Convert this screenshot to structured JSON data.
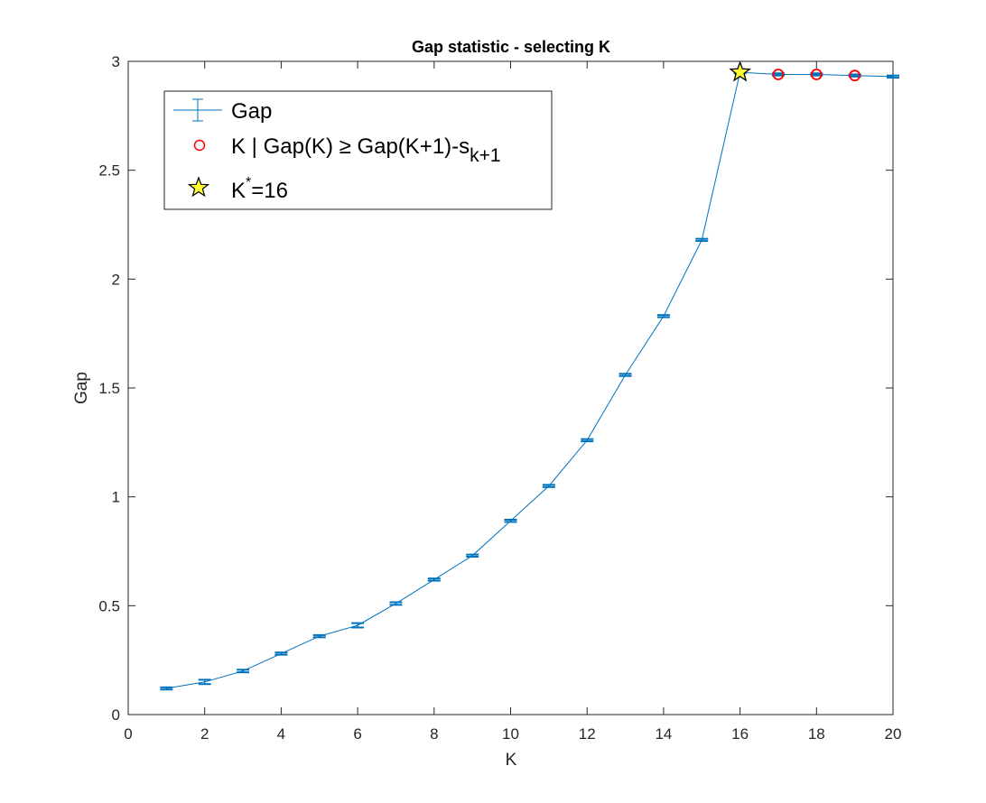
{
  "chart_data": {
    "type": "line",
    "title": "Gap statistic - selecting K",
    "xlabel": "K",
    "ylabel": "Gap",
    "xlim": [
      0,
      20
    ],
    "ylim": [
      0,
      3
    ],
    "xticks": [
      0,
      2,
      4,
      6,
      8,
      10,
      12,
      14,
      16,
      18,
      20
    ],
    "yticks": [
      0,
      0.5,
      1,
      1.5,
      2,
      2.5,
      3
    ],
    "grid": false,
    "legend_position": "top-left",
    "series": [
      {
        "name": "Gap",
        "style": "line-errorbar",
        "color": "#0072BD",
        "x": [
          1,
          2,
          3,
          4,
          5,
          6,
          7,
          8,
          9,
          10,
          11,
          12,
          13,
          14,
          15,
          16,
          17,
          18,
          19,
          20
        ],
        "y": [
          0.12,
          0.15,
          0.2,
          0.28,
          0.36,
          0.41,
          0.51,
          0.62,
          0.73,
          0.89,
          1.05,
          1.26,
          1.56,
          1.83,
          2.18,
          2.95,
          2.94,
          2.94,
          2.935,
          2.93
        ],
        "err": [
          0.005,
          0.01,
          0.006,
          0.005,
          0.005,
          0.01,
          0.006,
          0.005,
          0.005,
          0.005,
          0.005,
          0.005,
          0.005,
          0.005,
          0.005,
          0.005,
          0.005,
          0.005,
          0.005,
          0.005
        ]
      },
      {
        "name": "K | Gap(K) ≥ Gap(K+1)-s_{k+1}",
        "style": "markers-circle",
        "color": "#ff0000",
        "x": [
          17,
          18,
          19
        ],
        "y": [
          2.94,
          2.94,
          2.935
        ]
      },
      {
        "name": "K*=16",
        "style": "marker-star",
        "color": "#ffff33",
        "x": [
          16
        ],
        "y": [
          2.95
        ]
      }
    ],
    "legend": {
      "gap": "Gap",
      "cond_main": "K | Gap(K) ≥ Gap(K+1)-s",
      "cond_sub": "k+1",
      "kstar_k": "K",
      "kstar_sup": "*",
      "kstar_val": "=16"
    }
  }
}
